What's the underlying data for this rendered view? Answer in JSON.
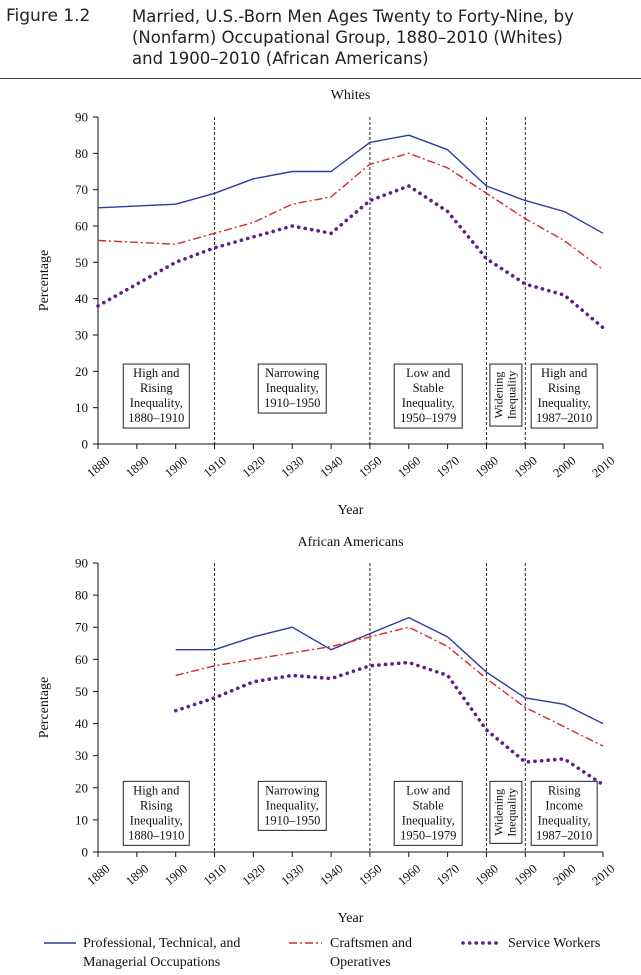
{
  "figure": {
    "label": "Figure 1.2",
    "title_lines": [
      "Married, U.S.-Born Men Ages Twenty to Forty-Nine, by",
      "(Nonfarm) Occupational Group, 1880–2010 (Whites)",
      "and 1900–2010 (African Americans)"
    ]
  },
  "legend": [
    {
      "name_lines": [
        "Professional, Technical, and",
        "Managerial Occupations"
      ],
      "color": "#2b3d9e"
    },
    {
      "name_lines": [
        "Craftsmen and",
        "Operatives"
      ],
      "color": "#d42a2a"
    },
    {
      "name_lines": [
        "Service Workers"
      ],
      "color": "#5b1e8a"
    }
  ],
  "chart_data": [
    {
      "type": "line",
      "title": "Whites",
      "xlabel": "Year",
      "ylabel": "Percentage",
      "xlim": [
        1880,
        2010
      ],
      "ylim": [
        0,
        90
      ],
      "x_ticks": [
        "1880",
        "1890",
        "1900",
        "1910",
        "1920",
        "1930",
        "1940",
        "1950",
        "1960",
        "1970",
        "1980",
        "1990",
        "2000",
        "2010"
      ],
      "y_ticks": [
        "0",
        "10",
        "20",
        "30",
        "40",
        "50",
        "60",
        "70",
        "80",
        "90"
      ],
      "vlines": [
        1910,
        1950,
        1980,
        1990
      ],
      "periods": [
        {
          "x": 1895,
          "lines": [
            "High and",
            "Rising",
            "Inequality,",
            "1880–1910"
          ]
        },
        {
          "x": 1930,
          "lines": [
            "Narrowing",
            "Inequality,",
            "1910–1950"
          ]
        },
        {
          "x": 1965,
          "lines": [
            "Low and",
            "Stable",
            "Inequality,",
            "1950–1979"
          ]
        },
        {
          "x": 1985,
          "vertical": true,
          "lines": [
            "Widening",
            "Inequality"
          ]
        },
        {
          "x": 2000,
          "lines": [
            "High and",
            "Rising",
            "Inequality,",
            "1987–2010"
          ]
        }
      ],
      "x": [
        1880,
        1900,
        1910,
        1920,
        1930,
        1940,
        1950,
        1960,
        1970,
        1980,
        1990,
        2000,
        2010
      ],
      "series": [
        {
          "name": "Professional, Technical, and Managerial Occupations",
          "values": [
            65,
            66,
            69,
            73,
            75,
            75,
            83,
            85,
            81,
            71,
            67,
            64,
            58
          ]
        },
        {
          "name": "Craftsmen and Operatives",
          "values": [
            56,
            55,
            58,
            61,
            66,
            68,
            77,
            80,
            76,
            69,
            62,
            56,
            48
          ]
        },
        {
          "name": "Service Workers",
          "values": [
            38,
            50,
            54,
            57,
            60,
            58,
            67,
            71,
            64,
            51,
            44,
            41,
            32
          ]
        }
      ]
    },
    {
      "type": "line",
      "title": "African Americans",
      "xlabel": "Year",
      "ylabel": "Percentage",
      "xlim": [
        1880,
        2010
      ],
      "ylim": [
        0,
        90
      ],
      "x_ticks": [
        "1880",
        "1890",
        "1900",
        "1910",
        "1920",
        "1930",
        "1940",
        "1950",
        "1960",
        "1970",
        "1980",
        "1990",
        "2000",
        "2010"
      ],
      "y_ticks": [
        "0",
        "10",
        "20",
        "30",
        "40",
        "50",
        "60",
        "70",
        "80",
        "90"
      ],
      "vlines": [
        1910,
        1950,
        1980,
        1990
      ],
      "periods": [
        {
          "x": 1895,
          "lines": [
            "High and",
            "Rising",
            "Inequality,",
            "1880–1910"
          ]
        },
        {
          "x": 1930,
          "lines": [
            "Narrowing",
            "Inequality,",
            "1910–1950"
          ]
        },
        {
          "x": 1965,
          "lines": [
            "Low and",
            "Stable",
            "Inequality,",
            "1950–1979"
          ]
        },
        {
          "x": 1985,
          "vertical": true,
          "lines": [
            "Widening",
            "Inequality"
          ]
        },
        {
          "x": 2000,
          "lines": [
            "Rising",
            "Income",
            "Inequality,",
            "1987–2010"
          ]
        }
      ],
      "x": [
        1900,
        1910,
        1920,
        1930,
        1940,
        1950,
        1960,
        1970,
        1980,
        1990,
        2000,
        2010
      ],
      "series": [
        {
          "name": "Professional, Technical, and Managerial Occupations",
          "values": [
            63,
            63,
            67,
            70,
            63,
            68,
            73,
            67,
            56,
            48,
            46,
            40
          ]
        },
        {
          "name": "Craftsmen and Operatives",
          "values": [
            55,
            58,
            60,
            62,
            64,
            67,
            70,
            64,
            54,
            45,
            39,
            33
          ]
        },
        {
          "name": "Service Workers",
          "values": [
            44,
            48,
            53,
            55,
            54,
            58,
            59,
            55,
            38,
            28,
            29,
            21
          ]
        }
      ]
    }
  ]
}
